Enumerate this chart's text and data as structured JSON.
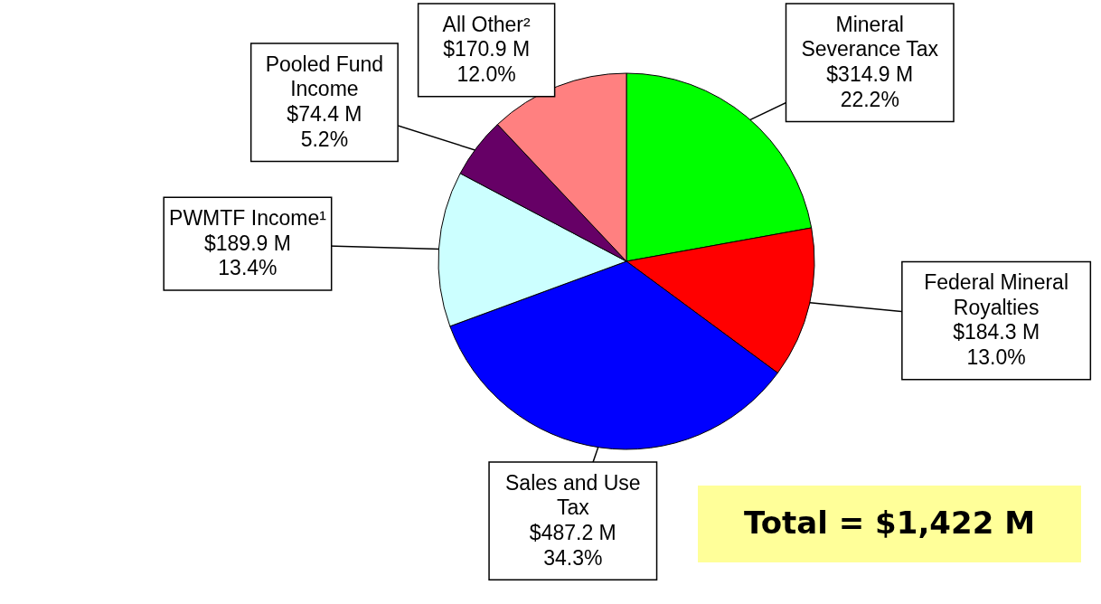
{
  "chart_data": {
    "type": "pie",
    "categories": [
      "Mineral Severance Tax",
      "Federal Mineral Royalties",
      "Sales and Use Tax",
      "PWMTF Income¹",
      "Pooled Fund Income",
      "All Other²"
    ],
    "values": [
      314.9,
      184.3,
      487.2,
      189.9,
      74.4,
      170.9
    ],
    "colors": [
      "#00ff00",
      "#ff0000",
      "#0000ff",
      "#ccffff",
      "#660066",
      "#ff8080"
    ],
    "value_labels": [
      "$314.9 M\n22.2%",
      "$184.3 M\n13.0%",
      "$487.2 M\n34.3%",
      "$189.9 M\n13.4%",
      "$74.4 M\n5.2%",
      "$170.9 M\n12.0%"
    ],
    "annotations": [
      "Total = $1,422 M"
    ]
  }
}
